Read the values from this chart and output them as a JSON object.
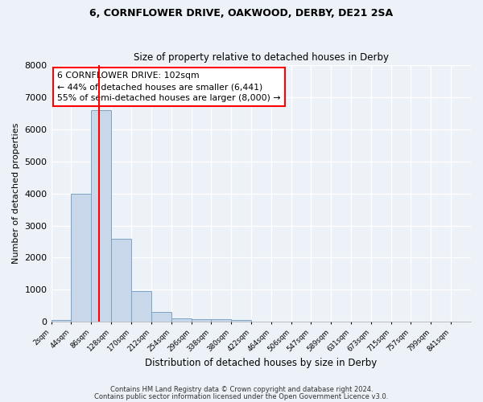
{
  "title1": "6, CORNFLOWER DRIVE, OAKWOOD, DERBY, DE21 2SA",
  "title2": "Size of property relative to detached houses in Derby",
  "xlabel": "Distribution of detached houses by size in Derby",
  "ylabel": "Number of detached properties",
  "bin_labels": [
    "2sqm",
    "44sqm",
    "86sqm",
    "128sqm",
    "170sqm",
    "212sqm",
    "254sqm",
    "296sqm",
    "338sqm",
    "380sqm",
    "422sqm",
    "464sqm",
    "506sqm",
    "547sqm",
    "589sqm",
    "631sqm",
    "673sqm",
    "715sqm",
    "757sqm",
    "799sqm",
    "841sqm"
  ],
  "bin_edges": [
    2,
    44,
    86,
    128,
    170,
    212,
    254,
    296,
    338,
    380,
    422,
    464,
    506,
    547,
    589,
    631,
    673,
    715,
    757,
    799,
    841
  ],
  "bar_heights": [
    50,
    4000,
    6600,
    2600,
    950,
    310,
    110,
    80,
    70,
    55,
    0,
    0,
    0,
    0,
    0,
    0,
    0,
    0,
    0,
    0
  ],
  "bar_color": "#c8d8ea",
  "bar_edge_color": "#7ba3c5",
  "property_line_x": 102,
  "property_line_color": "red",
  "ylim": [
    0,
    8000
  ],
  "yticks": [
    0,
    1000,
    2000,
    3000,
    4000,
    5000,
    6000,
    7000,
    8000
  ],
  "annotation_text": "6 CORNFLOWER DRIVE: 102sqm\n← 44% of detached houses are smaller (6,441)\n55% of semi-detached houses are larger (8,000) →",
  "annotation_box_color": "white",
  "annotation_box_edge": "red",
  "footer1": "Contains HM Land Registry data © Crown copyright and database right 2024.",
  "footer2": "Contains public sector information licensed under the Open Government Licence v3.0.",
  "background_color": "#edf2f8",
  "grid_color": "white"
}
